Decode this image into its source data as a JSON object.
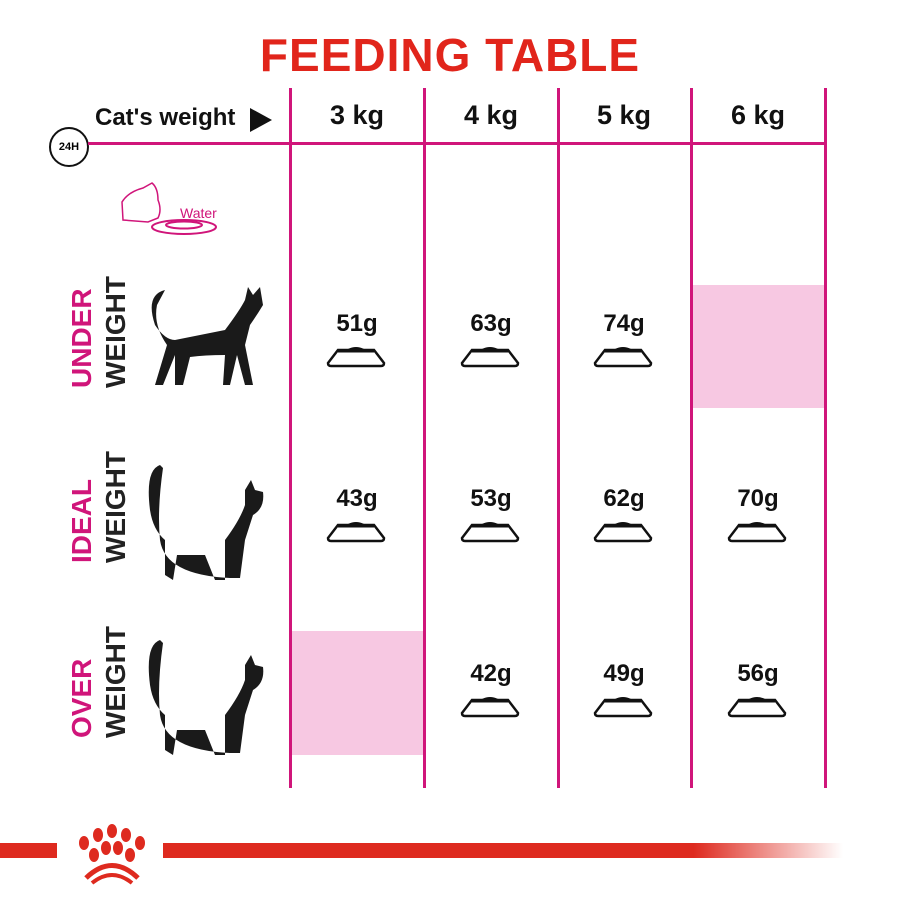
{
  "title": "FEEDING TABLE",
  "header": {
    "weight_label": "Cat's weight",
    "clock_label": "24H",
    "columns": [
      "3 kg",
      "4 kg",
      "5 kg",
      "6 kg"
    ]
  },
  "water_label": "Water",
  "rows": [
    {
      "label_top": "UNDER",
      "label_bottom": "WEIGHT",
      "values": [
        "51g",
        "63g",
        "74g",
        null
      ]
    },
    {
      "label_top": "IDEAL",
      "label_bottom": "WEIGHT",
      "values": [
        "43g",
        "53g",
        "62g",
        "70g"
      ]
    },
    {
      "label_top": "OVER",
      "label_bottom": "WEIGHT",
      "values": [
        null,
        "42g",
        "49g",
        "56g"
      ]
    }
  ],
  "colors": {
    "title": "#e1251b",
    "accent": "#d0157a",
    "empty_cell": "#f7c8e2",
    "brand_bar": "#de2a1f"
  }
}
